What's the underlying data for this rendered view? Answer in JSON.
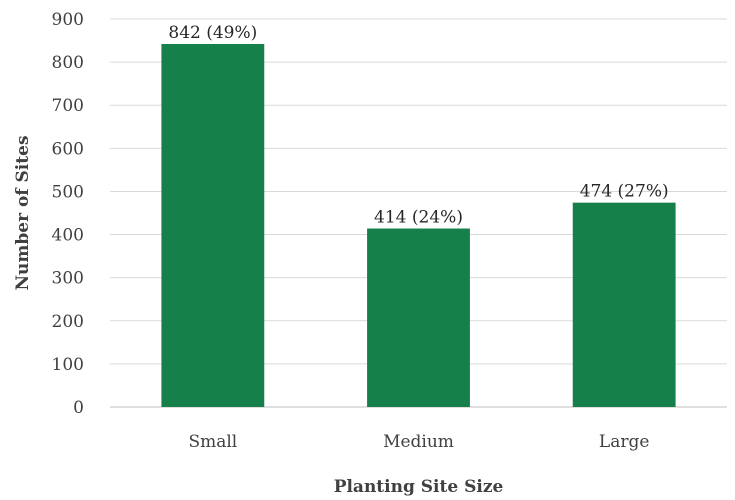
{
  "chart_data": {
    "type": "bar",
    "categories": [
      "Small",
      "Medium",
      "Large"
    ],
    "values": [
      842,
      414,
      474
    ],
    "data_labels": [
      "842 (49%)",
      "414 (24%)",
      "474 (27%)"
    ],
    "xlabel": "Planting Site Size",
    "ylabel": "Number of Sites",
    "ylim": [
      0,
      900
    ],
    "yticks": [
      0,
      100,
      200,
      300,
      400,
      500,
      600,
      700,
      800,
      900
    ],
    "grid": true,
    "bar_color": "#158049"
  }
}
